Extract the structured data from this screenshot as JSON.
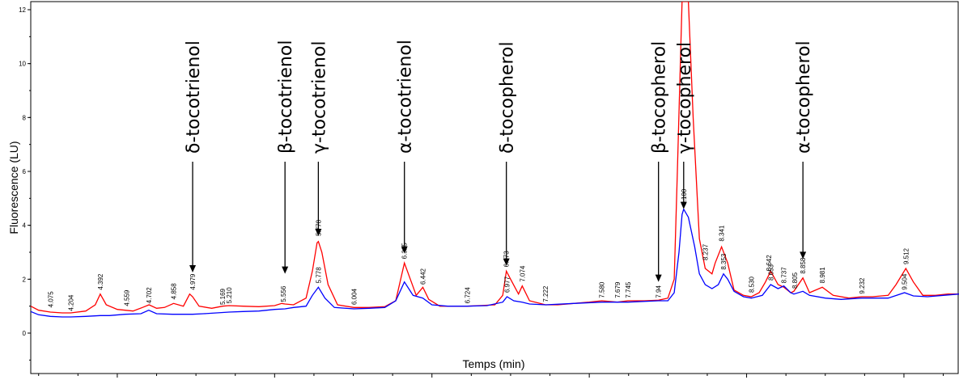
{
  "chart_data": {
    "type": "line",
    "title": "",
    "xlabel": "Temps (min)",
    "ylabel": "Fluorescence (LU)",
    "xlim": [
      3.95,
      9.85
    ],
    "ylim": [
      -1.5,
      12.3
    ],
    "yticks": [
      0,
      2,
      4,
      6,
      8,
      10,
      12
    ],
    "grid": false,
    "legend": "none",
    "series": [
      {
        "color": "#ff0000",
        "x": [
          3.95,
          4.0,
          4.075,
          4.15,
          4.204,
          4.3,
          4.36,
          4.392,
          4.43,
          4.5,
          4.6,
          4.66,
          4.702,
          4.75,
          4.8,
          4.858,
          4.92,
          4.96,
          4.979,
          5.02,
          5.1,
          5.169,
          5.21,
          5.3,
          5.4,
          5.5,
          5.545,
          5.566,
          5.62,
          5.7,
          5.74,
          5.77,
          5.778,
          5.8,
          5.84,
          5.9,
          6.004,
          6.1,
          6.2,
          6.27,
          6.325,
          6.35,
          6.4,
          6.442,
          6.48,
          6.55,
          6.65,
          6.724,
          6.8,
          6.9,
          6.95,
          6.973,
          7.0,
          7.05,
          7.074,
          7.12,
          7.222,
          7.3,
          7.4,
          7.5,
          7.58,
          7.679,
          7.745,
          7.85,
          7.94,
          8.0,
          8.04,
          8.06,
          8.09,
          8.1,
          8.11,
          8.13,
          8.16,
          8.2,
          8.237,
          8.28,
          8.3,
          8.341,
          8.38,
          8.42,
          8.48,
          8.53,
          8.58,
          8.62,
          8.653,
          8.7,
          8.737,
          8.78,
          8.8,
          8.858,
          8.9,
          8.981,
          9.05,
          9.15,
          9.232,
          9.3,
          9.4,
          9.45,
          9.512,
          9.56,
          9.62,
          9.7,
          9.78,
          9.85
        ],
        "values": [
          1.0,
          0.85,
          0.78,
          0.75,
          0.75,
          0.82,
          1.05,
          1.45,
          1.05,
          0.88,
          0.82,
          0.95,
          1.05,
          0.92,
          0.95,
          1.1,
          1.0,
          1.45,
          1.35,
          1.0,
          0.92,
          1.0,
          1.02,
          1.0,
          0.98,
          1.02,
          1.1,
          1.08,
          1.05,
          1.3,
          2.3,
          3.35,
          3.4,
          3.0,
          1.8,
          1.05,
          0.95,
          0.95,
          0.98,
          1.2,
          2.6,
          2.2,
          1.4,
          1.7,
          1.25,
          1.0,
          1.0,
          1.0,
          1.02,
          1.05,
          1.4,
          2.3,
          2.0,
          1.45,
          1.75,
          1.2,
          1.05,
          1.05,
          1.1,
          1.15,
          1.2,
          1.15,
          1.2,
          1.2,
          1.22,
          1.3,
          2.0,
          6.0,
          12.3,
          12.3,
          12.3,
          12.3,
          8.0,
          3.5,
          2.4,
          2.2,
          2.6,
          3.2,
          2.6,
          1.6,
          1.4,
          1.35,
          1.5,
          1.9,
          2.3,
          1.8,
          1.7,
          1.5,
          1.55,
          2.05,
          1.5,
          1.7,
          1.4,
          1.3,
          1.35,
          1.35,
          1.4,
          1.8,
          2.4,
          1.9,
          1.4,
          1.4,
          1.45,
          1.45
        ]
      },
      {
        "color": "#0000ff",
        "x": [
          3.95,
          4.0,
          4.075,
          4.15,
          4.204,
          4.3,
          4.392,
          4.45,
          4.55,
          4.65,
          4.7,
          4.75,
          4.85,
          4.979,
          5.05,
          5.21,
          5.3,
          5.4,
          5.5,
          5.566,
          5.62,
          5.7,
          5.74,
          5.778,
          5.82,
          5.88,
          6.004,
          6.1,
          6.2,
          6.27,
          6.325,
          6.38,
          6.442,
          6.5,
          6.6,
          6.724,
          6.85,
          6.95,
          6.977,
          7.02,
          7.074,
          7.12,
          7.222,
          7.4,
          7.58,
          7.745,
          7.94,
          8.0,
          8.04,
          8.07,
          8.09,
          8.1,
          8.13,
          8.17,
          8.2,
          8.237,
          8.28,
          8.32,
          8.353,
          8.38,
          8.42,
          8.48,
          8.53,
          8.6,
          8.653,
          8.7,
          8.737,
          8.78,
          8.8,
          8.858,
          8.9,
          9.0,
          9.1,
          9.232,
          9.4,
          9.504,
          9.56,
          9.65,
          9.75,
          9.85
        ],
        "values": [
          0.8,
          0.68,
          0.62,
          0.6,
          0.6,
          0.62,
          0.65,
          0.65,
          0.7,
          0.72,
          0.85,
          0.72,
          0.7,
          0.7,
          0.72,
          0.78,
          0.8,
          0.82,
          0.88,
          0.9,
          0.95,
          1.0,
          1.4,
          1.7,
          1.3,
          0.95,
          0.9,
          0.92,
          0.95,
          1.2,
          1.9,
          1.4,
          1.3,
          1.05,
          1.0,
          1.0,
          1.02,
          1.15,
          1.35,
          1.2,
          1.15,
          1.08,
          1.05,
          1.1,
          1.15,
          1.15,
          1.2,
          1.2,
          1.5,
          3.0,
          4.4,
          4.6,
          4.3,
          3.2,
          2.2,
          1.8,
          1.65,
          1.8,
          2.2,
          2.0,
          1.55,
          1.35,
          1.3,
          1.4,
          1.8,
          1.65,
          1.75,
          1.5,
          1.45,
          1.55,
          1.4,
          1.3,
          1.25,
          1.3,
          1.3,
          1.5,
          1.38,
          1.35,
          1.4,
          1.45
        ]
      }
    ],
    "peak_labels": [
      {
        "text": "4.075",
        "x": 4.075,
        "y": 0.95
      },
      {
        "text": "4.204",
        "x": 4.204,
        "y": 0.82
      },
      {
        "text": "4.392",
        "x": 4.392,
        "y": 1.6
      },
      {
        "text": "4.559",
        "x": 4.559,
        "y": 1.0
      },
      {
        "text": "4.702",
        "x": 4.702,
        "y": 1.1
      },
      {
        "text": "4.858",
        "x": 4.858,
        "y": 1.25
      },
      {
        "text": "4.979",
        "x": 4.979,
        "y": 1.6
      },
      {
        "text": "5.169",
        "x": 5.169,
        "y": 1.05
      },
      {
        "text": "5.210",
        "x": 5.21,
        "y": 1.1
      },
      {
        "text": "5.556",
        "x": 5.556,
        "y": 1.15
      },
      {
        "text": "5.778",
        "x": 5.778,
        "y": 3.6
      },
      {
        "text": "5.778",
        "x": 5.778,
        "y": 1.85
      },
      {
        "text": "6.004",
        "x": 6.004,
        "y": 1.05
      },
      {
        "text": "6.325",
        "x": 6.325,
        "y": 2.75
      },
      {
        "text": "6.442",
        "x": 6.442,
        "y": 1.8
      },
      {
        "text": "6.724",
        "x": 6.724,
        "y": 1.1
      },
      {
        "text": "6.973",
        "x": 6.973,
        "y": 2.45
      },
      {
        "text": "6.977",
        "x": 6.977,
        "y": 1.5
      },
      {
        "text": "7.074",
        "x": 7.074,
        "y": 1.9
      },
      {
        "text": "7.222",
        "x": 7.222,
        "y": 1.15
      },
      {
        "text": "7.580",
        "x": 7.58,
        "y": 1.3
      },
      {
        "text": "7.679",
        "x": 7.679,
        "y": 1.3
      },
      {
        "text": "7.745",
        "x": 7.745,
        "y": 1.3
      },
      {
        "text": "7.94",
        "x": 7.94,
        "y": 1.3
      },
      {
        "text": "8.100",
        "x": 8.1,
        "y": 4.75
      },
      {
        "text": "8.237",
        "x": 8.237,
        "y": 2.7
      },
      {
        "text": "8.341",
        "x": 8.341,
        "y": 3.4
      },
      {
        "text": "8.353",
        "x": 8.353,
        "y": 2.35
      },
      {
        "text": "8.530",
        "x": 8.53,
        "y": 1.5
      },
      {
        "text": "8.642",
        "x": 8.642,
        "y": 2.3
      },
      {
        "text": "8.653",
        "x": 8.653,
        "y": 1.95
      },
      {
        "text": "8.737",
        "x": 8.737,
        "y": 1.85
      },
      {
        "text": "8.805",
        "x": 8.805,
        "y": 1.65
      },
      {
        "text": "8.858",
        "x": 8.858,
        "y": 2.2
      },
      {
        "text": "8.981",
        "x": 8.981,
        "y": 1.85
      },
      {
        "text": "9.232",
        "x": 9.232,
        "y": 1.45
      },
      {
        "text": "9.504",
        "x": 9.504,
        "y": 1.6
      },
      {
        "text": "9.512",
        "x": 9.512,
        "y": 2.55
      }
    ],
    "annotations": [
      {
        "text": "δ-tocotrienol",
        "x": 4.979,
        "arrow_tip": 2.25
      },
      {
        "text": "β-tocotrienol",
        "x": 5.566,
        "arrow_tip": 2.2
      },
      {
        "text": "γ-tocotrienol",
        "x": 5.778,
        "arrow_tip": 3.6
      },
      {
        "text": "α-tocotrienol",
        "x": 6.325,
        "arrow_tip": 2.95
      },
      {
        "text": "δ-tocopherol",
        "x": 6.973,
        "arrow_tip": 2.5
      },
      {
        "text": "β-tocopherol",
        "x": 7.94,
        "arrow_tip": 1.9
      },
      {
        "text": "γ-tocopherol",
        "x": 8.1,
        "arrow_tip": 4.6
      },
      {
        "text": "α-tocopherol",
        "x": 8.858,
        "arrow_tip": 2.75
      }
    ]
  }
}
